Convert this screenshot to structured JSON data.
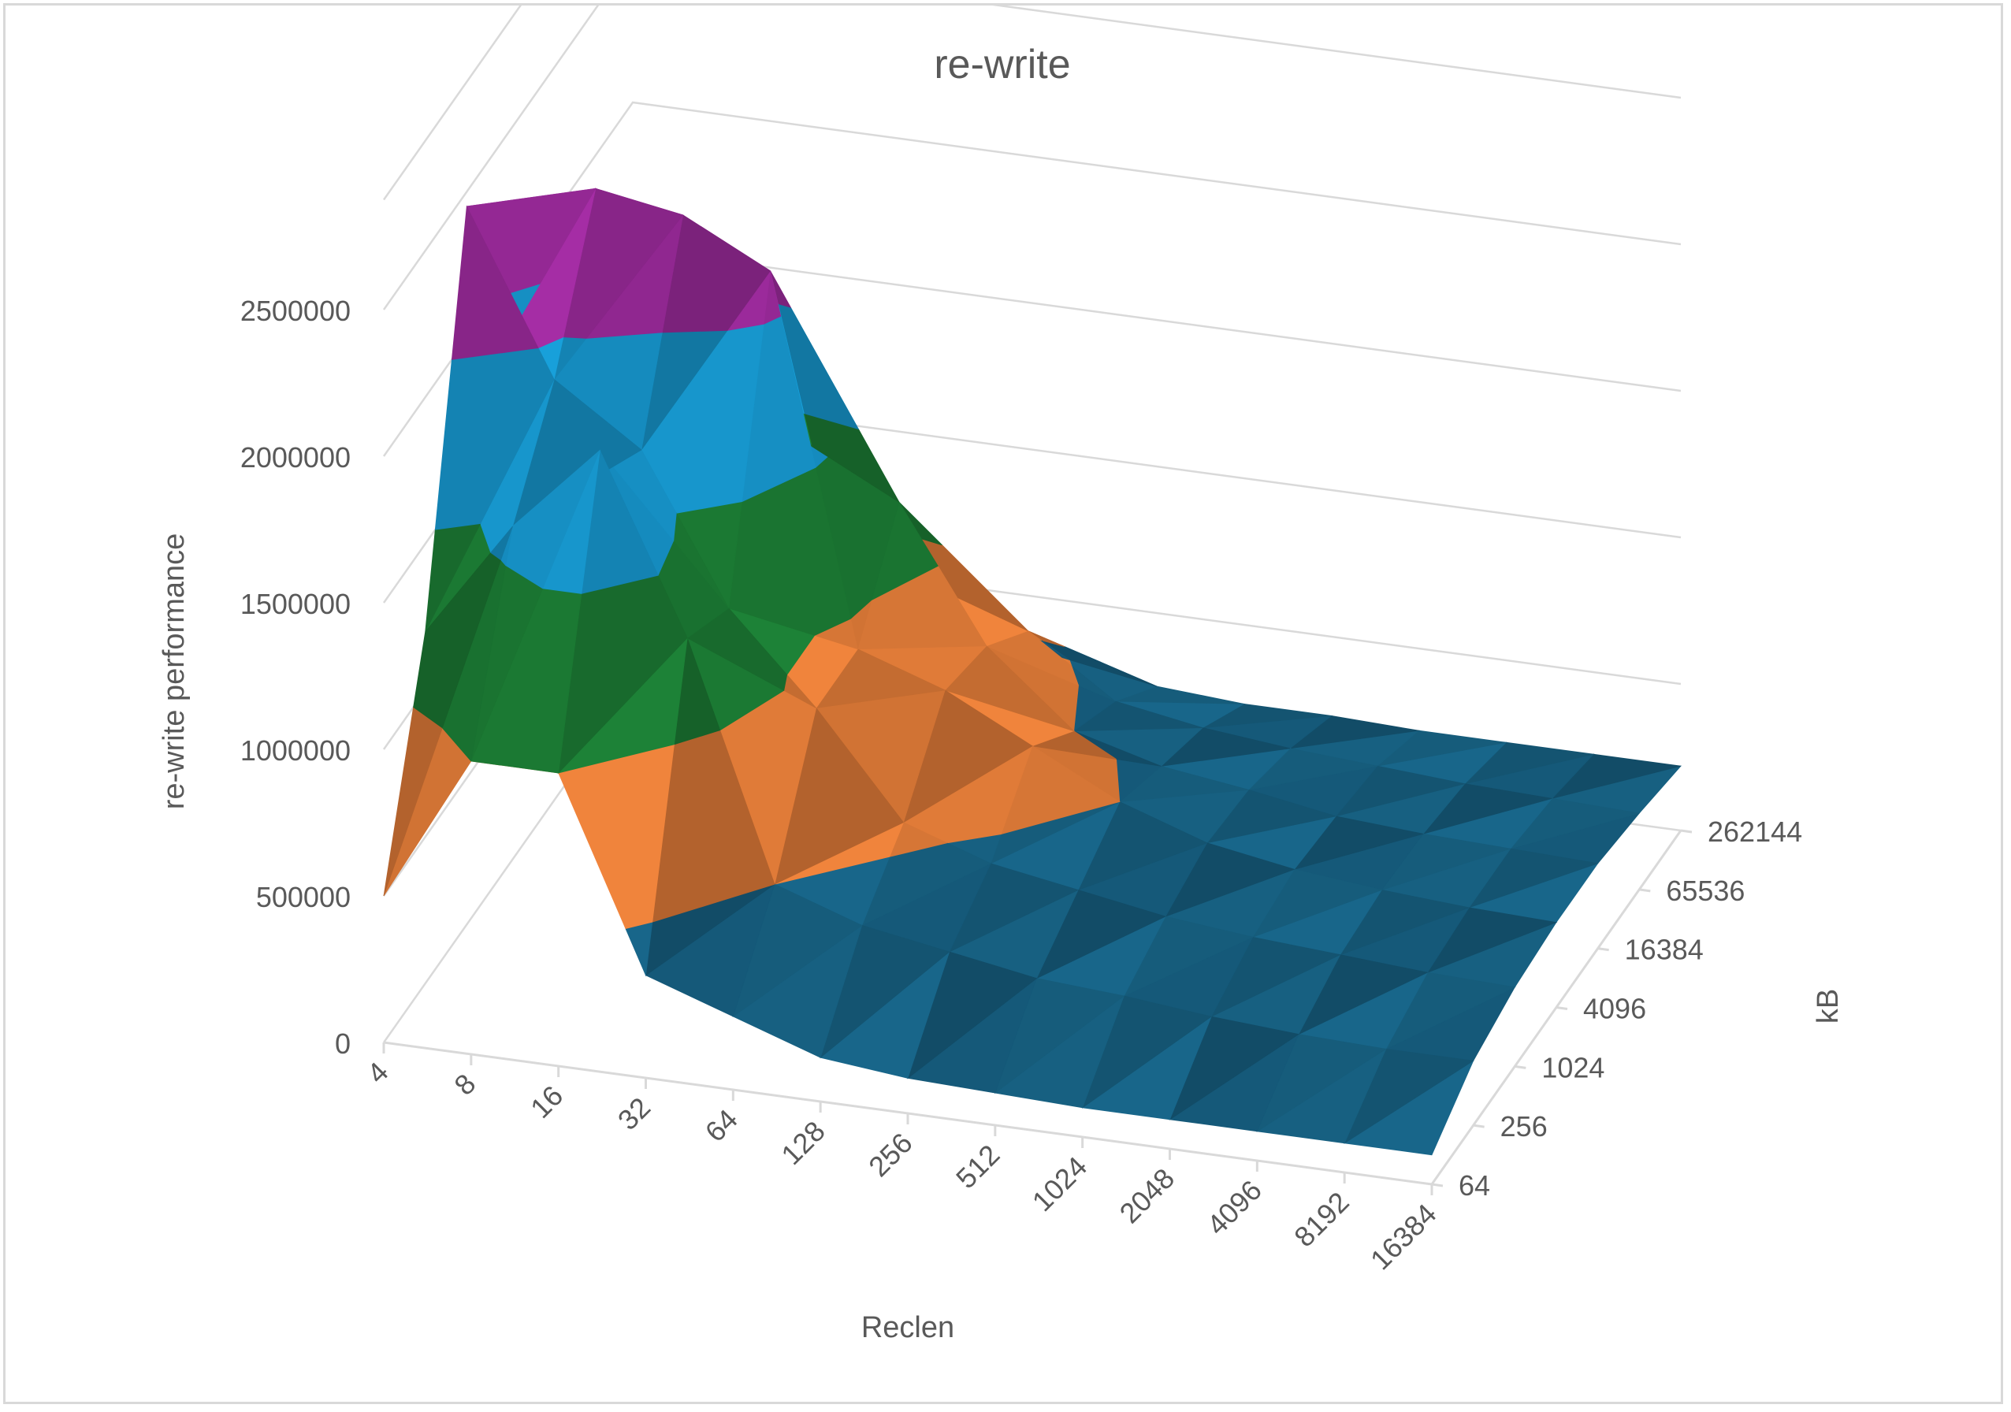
{
  "chart_data": {
    "type": "surface",
    "title": "re-write",
    "xlabel": "Reclen",
    "ylabel": "kB",
    "zlabel": "re-write performance",
    "x": [
      "4",
      "8",
      "16",
      "32",
      "64",
      "128",
      "256",
      "512",
      "1024",
      "2048",
      "4096",
      "8192",
      "16384"
    ],
    "y": [
      "64",
      "256",
      "1024",
      "4096",
      "16384",
      "65536",
      "262144"
    ],
    "z_ticks": [
      "0",
      "500000",
      "1000000",
      "1500000",
      "2000000",
      "2500000"
    ],
    "zlim": [
      0,
      2500000
    ],
    "legend": "none",
    "grid": true,
    "band_colors": [
      "#1a6d93",
      "#ff8c40",
      "#1f8a3a",
      "#1aaae8",
      "#b030b0"
    ],
    "values": [
      [
        500000,
        1200000,
        2450000,
        1800000,
        1500000,
        1200000,
        900000
      ],
      [
        1000000,
        1600000,
        1900000,
        2350000,
        1800000,
        1400000,
        800000
      ],
      [
        1000000,
        1900000,
        1700000,
        2300000,
        1600000,
        1000000,
        600000
      ],
      [
        350000,
        1300000,
        1200000,
        2150000,
        1350000,
        900000,
        500000
      ],
      [
        250000,
        500000,
        900000,
        900000,
        1200000,
        700000,
        350000
      ],
      [
        150000,
        400000,
        550000,
        800000,
        750000,
        600000,
        300000
      ],
      [
        120000,
        350000,
        450000,
        650000,
        500000,
        400000,
        250000
      ],
      [
        110000,
        300000,
        400000,
        500000,
        420000,
        350000,
        230000
      ],
      [
        100000,
        280000,
        350000,
        400000,
        380000,
        320000,
        230000
      ],
      [
        100000,
        250000,
        320000,
        350000,
        330000,
        300000,
        220000
      ],
      [
        100000,
        230000,
        300000,
        320000,
        310000,
        280000,
        220000
      ],
      [
        100000,
        220000,
        280000,
        300000,
        300000,
        270000,
        220000
      ],
      [
        100000,
        220000,
        270000,
        290000,
        290000,
        260000,
        220000
      ]
    ]
  }
}
